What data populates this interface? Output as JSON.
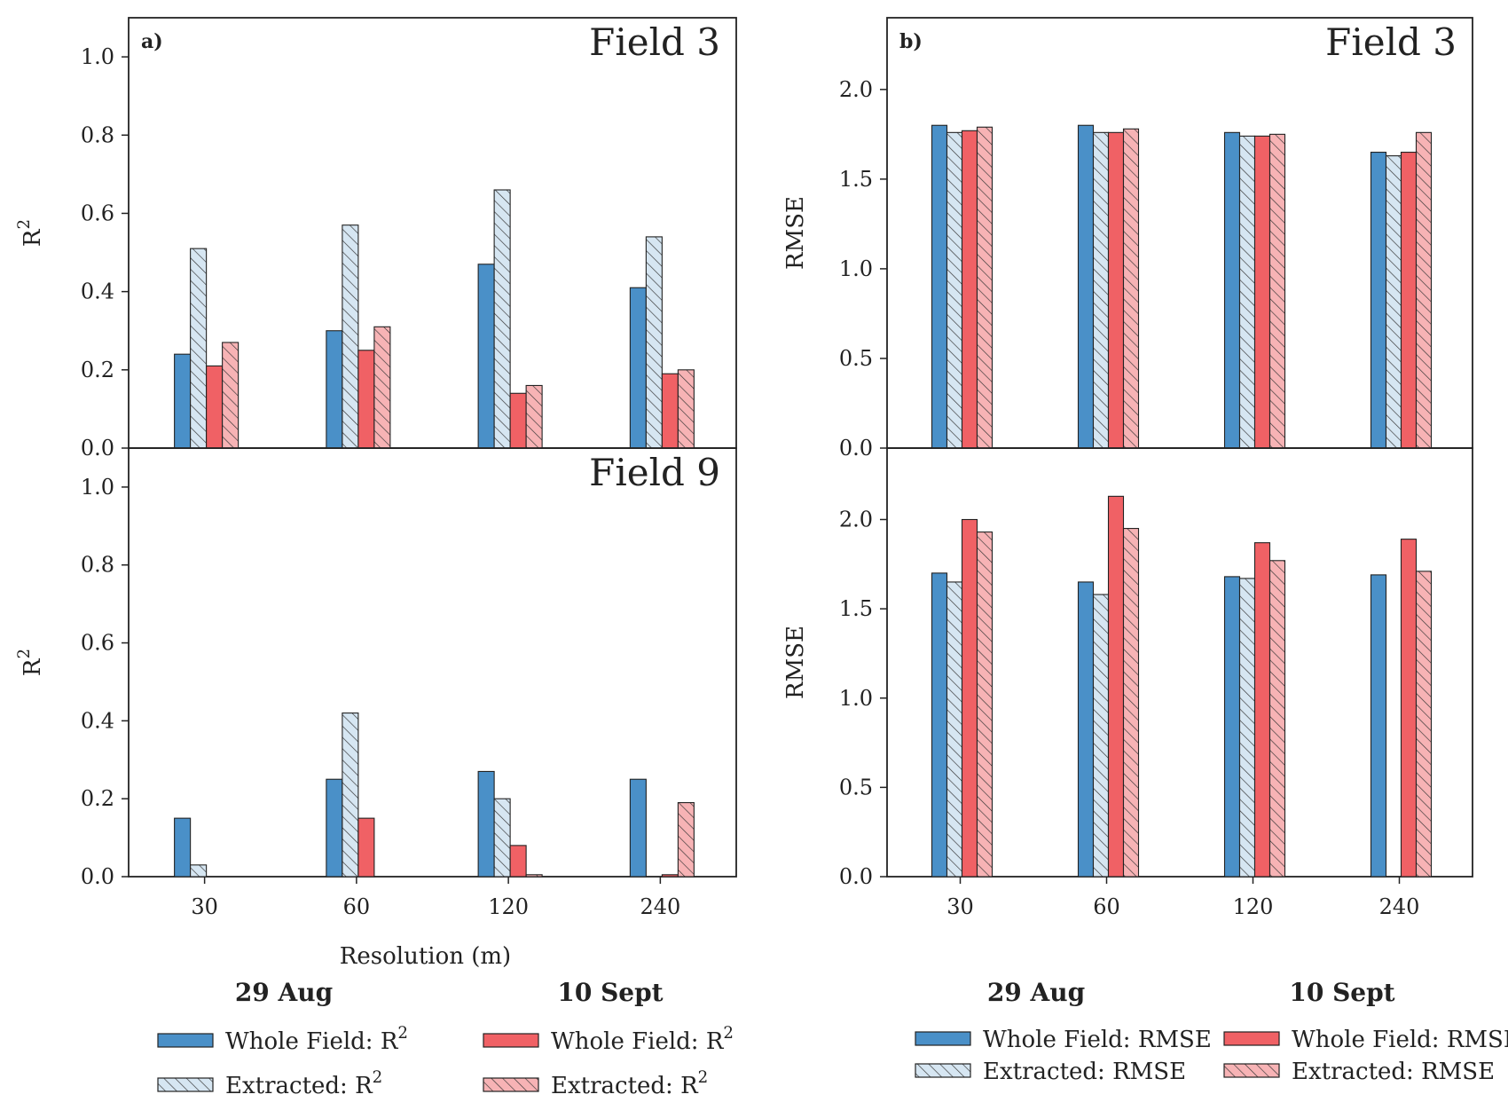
{
  "colors": {
    "whole_aug": "#4a90c8",
    "extracted_aug": "#d6e6f2",
    "whole_sept": "#f06165",
    "extracted_sept": "#f7b3b5"
  },
  "chart_data": [
    {
      "type": "bar",
      "panel_letter": "a)",
      "field_label": "Field 3",
      "ylabel": "R",
      "ylabel_sup": "2",
      "ylim": [
        0,
        1.1
      ],
      "yticks": [
        "0.0",
        "0.2",
        "0.4",
        "0.6",
        "0.8",
        "1.0"
      ],
      "categories": [
        "30",
        "60",
        "120",
        "240"
      ],
      "series": [
        {
          "name": "Whole Field: R",
          "sup": "2",
          "style": "whole_aug",
          "values": [
            0.24,
            0.3,
            0.47,
            0.41
          ]
        },
        {
          "name": "Extracted: R",
          "sup": "2",
          "style": "extracted_aug",
          "values": [
            0.51,
            0.57,
            0.66,
            0.54
          ]
        },
        {
          "name": "Whole Field: R",
          "sup": "2",
          "style": "whole_sept",
          "values": [
            0.21,
            0.25,
            0.14,
            0.19
          ]
        },
        {
          "name": "Extracted: R",
          "sup": "2",
          "style": "extracted_sept",
          "values": [
            0.27,
            0.31,
            0.16,
            0.2
          ]
        }
      ]
    },
    {
      "type": "bar",
      "panel_letter": "",
      "field_label": "Field 9",
      "ylabel": "R",
      "ylabel_sup": "2",
      "ylim": [
        0,
        1.1
      ],
      "yticks": [
        "0.0",
        "0.2",
        "0.4",
        "0.6",
        "0.8",
        "1.0"
      ],
      "xlabel": "Resolution (m)",
      "categories": [
        "30",
        "60",
        "120",
        "240"
      ],
      "series": [
        {
          "name": "Whole Field: R",
          "sup": "2",
          "style": "whole_aug",
          "values": [
            0.15,
            0.25,
            0.27,
            0.25
          ]
        },
        {
          "name": "Extracted: R",
          "sup": "2",
          "style": "extracted_aug",
          "values": [
            0.03,
            0.42,
            0.2,
            0.0
          ]
        },
        {
          "name": "Whole Field: R",
          "sup": "2",
          "style": "whole_sept",
          "values": [
            0.0,
            0.15,
            0.08,
            0.005
          ]
        },
        {
          "name": "Extracted: R",
          "sup": "2",
          "style": "extracted_sept",
          "values": [
            0.0,
            0.0,
            0.005,
            0.19
          ]
        }
      ]
    },
    {
      "type": "bar",
      "panel_letter": "b)",
      "field_label": "Field 3",
      "ylabel": "RMSE",
      "ylim": [
        0,
        2.4
      ],
      "yticks": [
        "0.0",
        "0.5",
        "1.0",
        "1.5",
        "2.0"
      ],
      "categories": [
        "30",
        "60",
        "120",
        "240"
      ],
      "series": [
        {
          "name": "Whole Field: RMSE",
          "style": "whole_aug",
          "values": [
            1.8,
            1.8,
            1.76,
            1.65
          ]
        },
        {
          "name": "Extracted: RMSE",
          "style": "extracted_aug",
          "values": [
            1.76,
            1.76,
            1.74,
            1.63
          ]
        },
        {
          "name": "Whole Field: RMSE",
          "style": "whole_sept",
          "values": [
            1.77,
            1.76,
            1.74,
            1.65
          ]
        },
        {
          "name": "Extracted: RMSE",
          "style": "extracted_sept",
          "values": [
            1.79,
            1.78,
            1.75,
            1.76
          ]
        }
      ]
    },
    {
      "type": "bar",
      "panel_letter": "",
      "field_label": "",
      "ylabel": "RMSE",
      "ylim": [
        0,
        2.4
      ],
      "yticks": [
        "0.0",
        "0.5",
        "1.0",
        "1.5",
        "2.0"
      ],
      "categories": [
        "30",
        "60",
        "120",
        "240"
      ],
      "series": [
        {
          "name": "Whole Field: RMSE",
          "style": "whole_aug",
          "values": [
            1.7,
            1.65,
            1.68,
            1.69
          ]
        },
        {
          "name": "Extracted: RMSE",
          "style": "extracted_aug",
          "values": [
            1.65,
            1.58,
            1.67,
            0.0
          ]
        },
        {
          "name": "Whole Field: RMSE",
          "style": "whole_sept",
          "values": [
            2.0,
            2.13,
            1.87,
            1.89
          ]
        },
        {
          "name": "Extracted: RMSE",
          "style": "extracted_sept",
          "values": [
            1.93,
            1.95,
            1.77,
            1.71
          ]
        }
      ]
    }
  ],
  "legend": {
    "left": {
      "aug_title": "29 Aug",
      "sept_title": "10 Sept",
      "items": [
        {
          "label": "Whole Field: R",
          "sup": "2",
          "style": "whole_aug",
          "group": "aug"
        },
        {
          "label": "Extracted: R",
          "sup": "2",
          "style": "extracted_aug",
          "group": "aug"
        },
        {
          "label": "Whole Field: R",
          "sup": "2",
          "style": "whole_sept",
          "group": "sept"
        },
        {
          "label": "Extracted: R",
          "sup": "2",
          "style": "extracted_sept",
          "group": "sept"
        }
      ]
    },
    "right": {
      "aug_title": "29 Aug",
      "sept_title": "10 Sept",
      "items": [
        {
          "label": "Whole Field: RMSE",
          "style": "whole_aug",
          "group": "aug"
        },
        {
          "label": "Extracted: RMSE",
          "style": "extracted_aug",
          "group": "aug"
        },
        {
          "label": "Whole Field: RMSE",
          "style": "whole_sept",
          "group": "sept"
        },
        {
          "label": "Extracted: RMSE",
          "style": "extracted_sept",
          "group": "sept"
        }
      ]
    }
  }
}
